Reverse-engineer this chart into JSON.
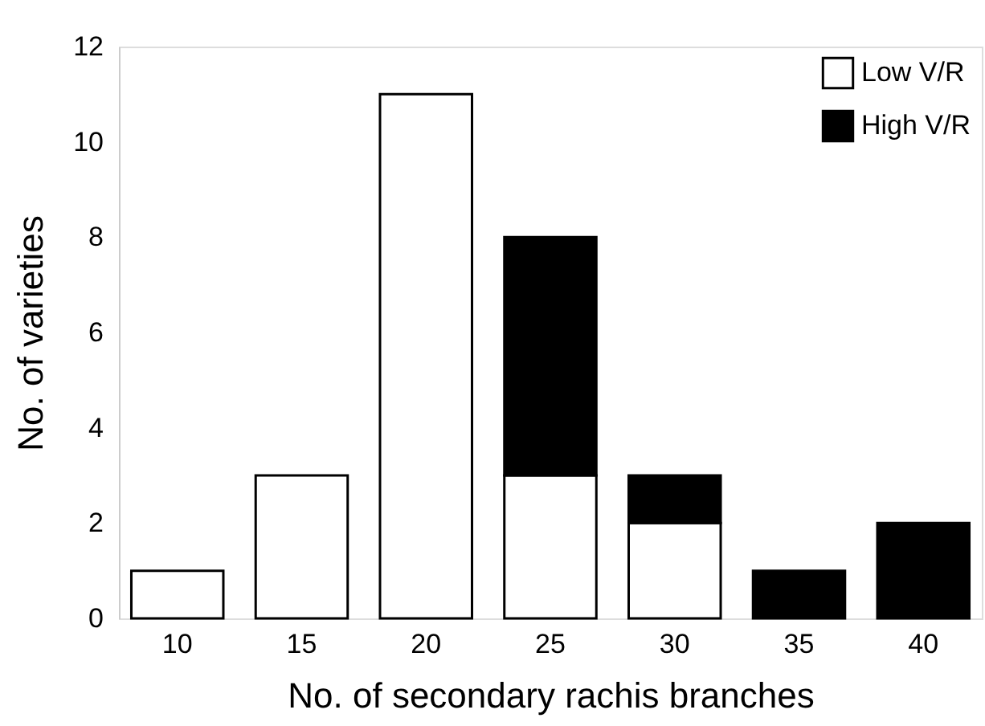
{
  "chart_data": {
    "type": "bar",
    "stacked": true,
    "xlabel": "No. of secondary rachis branches",
    "ylabel": "No. of varieties",
    "categories": [
      "10",
      "15",
      "20",
      "25",
      "30",
      "35",
      "40"
    ],
    "series": [
      {
        "name": "Low V/R",
        "color": "#ffffff",
        "values": [
          1,
          3,
          11,
          3,
          2,
          null,
          null
        ]
      },
      {
        "name": "High V/R",
        "color": "#000000",
        "values": [
          null,
          null,
          null,
          5,
          1,
          1,
          2
        ]
      }
    ],
    "ylim": [
      0,
      12
    ],
    "yticks": [
      0,
      2,
      4,
      6,
      8,
      10,
      12
    ],
    "grid": false,
    "legend": "top right"
  }
}
